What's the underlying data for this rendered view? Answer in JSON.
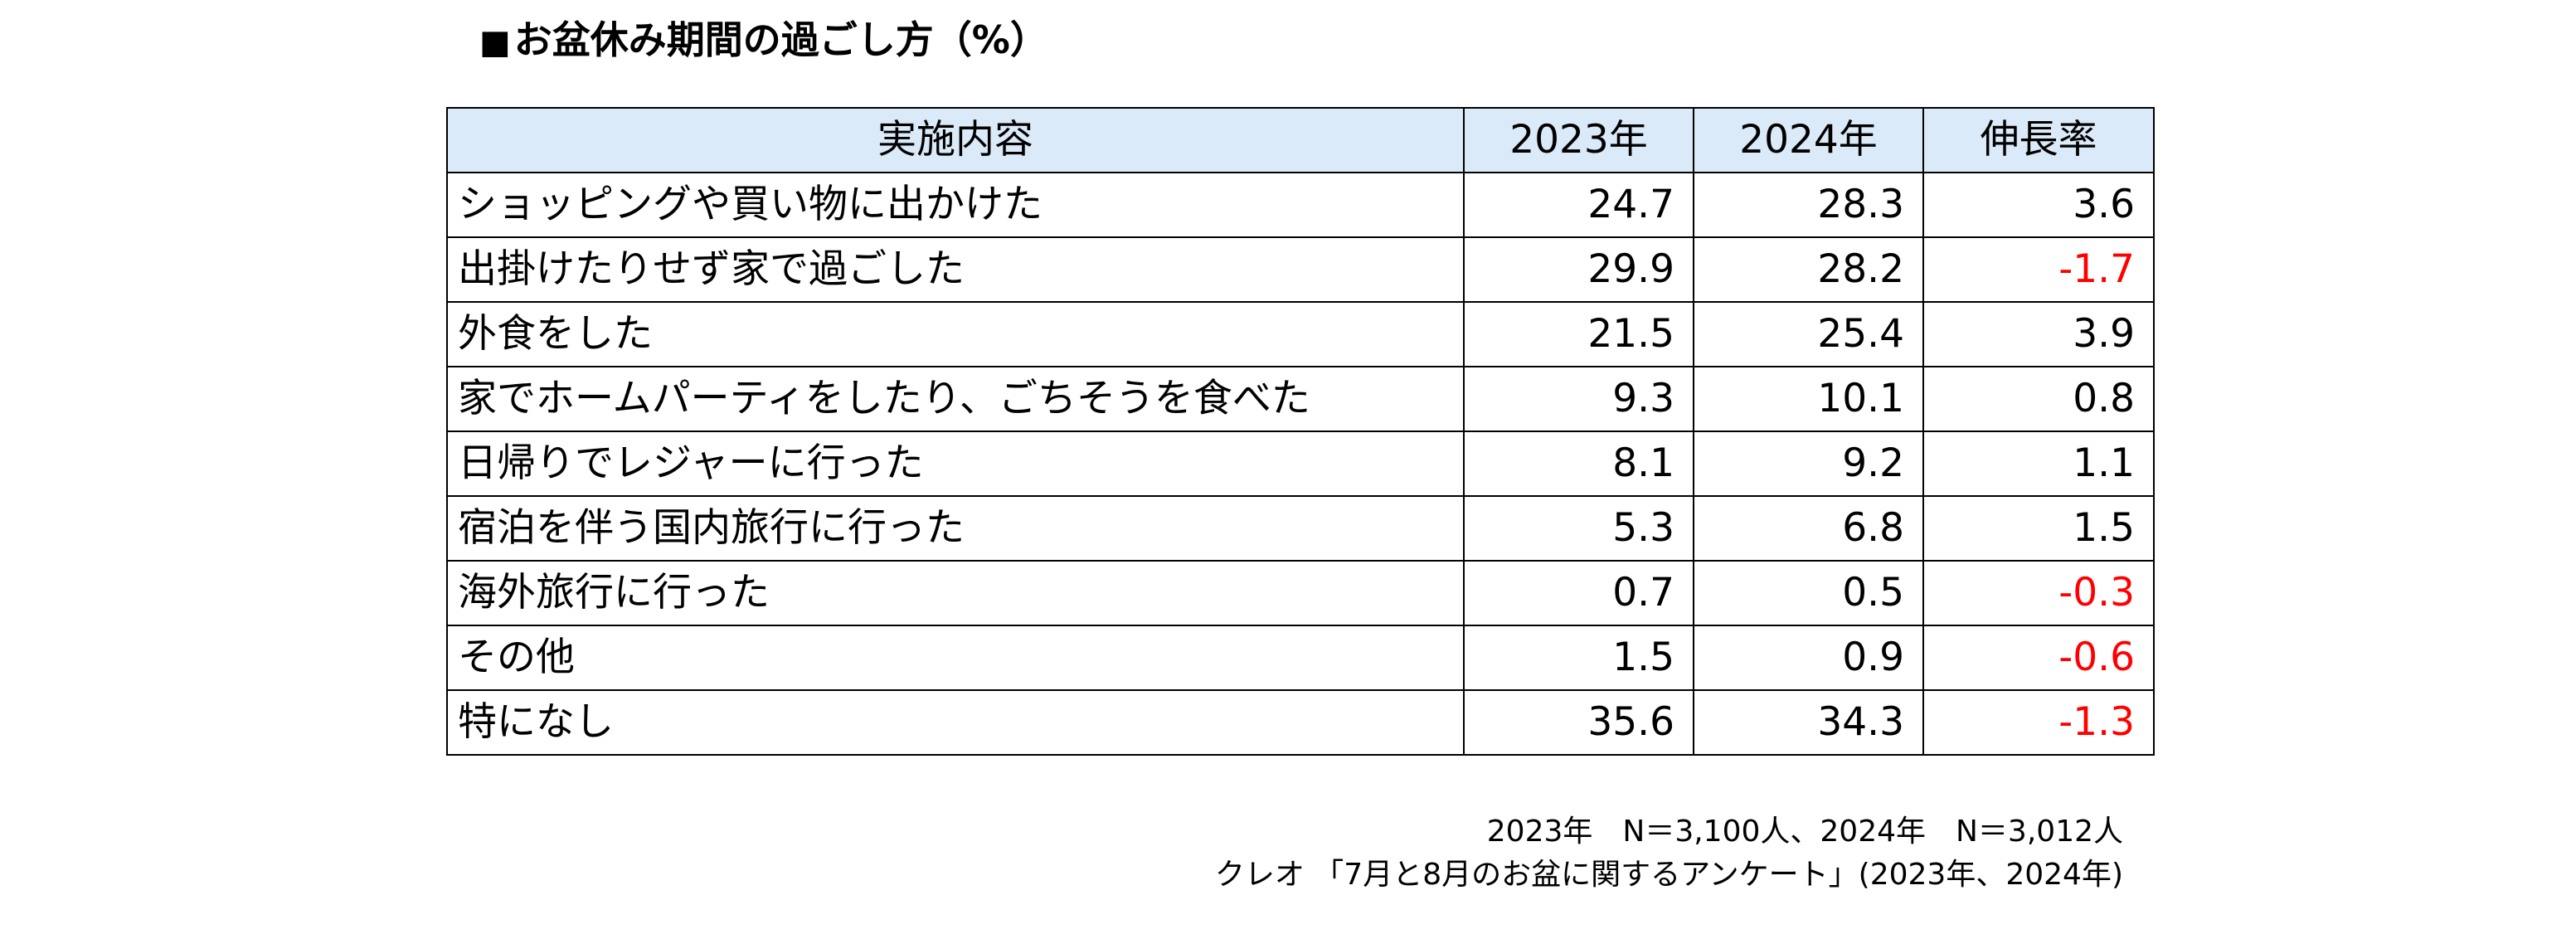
{
  "title": {
    "mark": "■",
    "text": "お盆休み期間の過ごし方（%）"
  },
  "chart_data": {
    "type": "table",
    "columns": [
      "実施内容",
      "2023年",
      "2024年",
      "伸長率"
    ],
    "rows": [
      {
        "item": "ショッピングや買い物に出かけた",
        "y2023": "24.7",
        "y2024": "28.3",
        "growth": "3.6"
      },
      {
        "item": "出掛けたりせず家で過ごした",
        "y2023": "29.9",
        "y2024": "28.2",
        "growth": "-1.7"
      },
      {
        "item": "外食をした",
        "y2023": "21.5",
        "y2024": "25.4",
        "growth": "3.9"
      },
      {
        "item": "家でホームパーティをしたり、ごちそうを食べた",
        "y2023": "9.3",
        "y2024": "10.1",
        "growth": "0.8"
      },
      {
        "item": "日帰りでレジャーに行った",
        "y2023": "8.1",
        "y2024": "9.2",
        "growth": "1.1"
      },
      {
        "item": "宿泊を伴う国内旅行に行った",
        "y2023": "5.3",
        "y2024": "6.8",
        "growth": "1.5"
      },
      {
        "item": "海外旅行に行った",
        "y2023": "0.7",
        "y2024": "0.5",
        "growth": "-0.3"
      },
      {
        "item": "その他",
        "y2023": "1.5",
        "y2024": "0.9",
        "growth": "-0.6"
      },
      {
        "item": "特になし",
        "y2023": "35.6",
        "y2024": "34.3",
        "growth": "-1.3"
      }
    ]
  },
  "notes": {
    "sample": "2023年　N＝3,100人、2024年　N＝3,012人",
    "source": "クレオ 「7月と8月のお盆に関するアンケート」(2023年、2024年)"
  },
  "colors": {
    "header_bg": "#dbeaf8",
    "negative": "#ff0000",
    "text": "#000000",
    "border": "#000000"
  }
}
